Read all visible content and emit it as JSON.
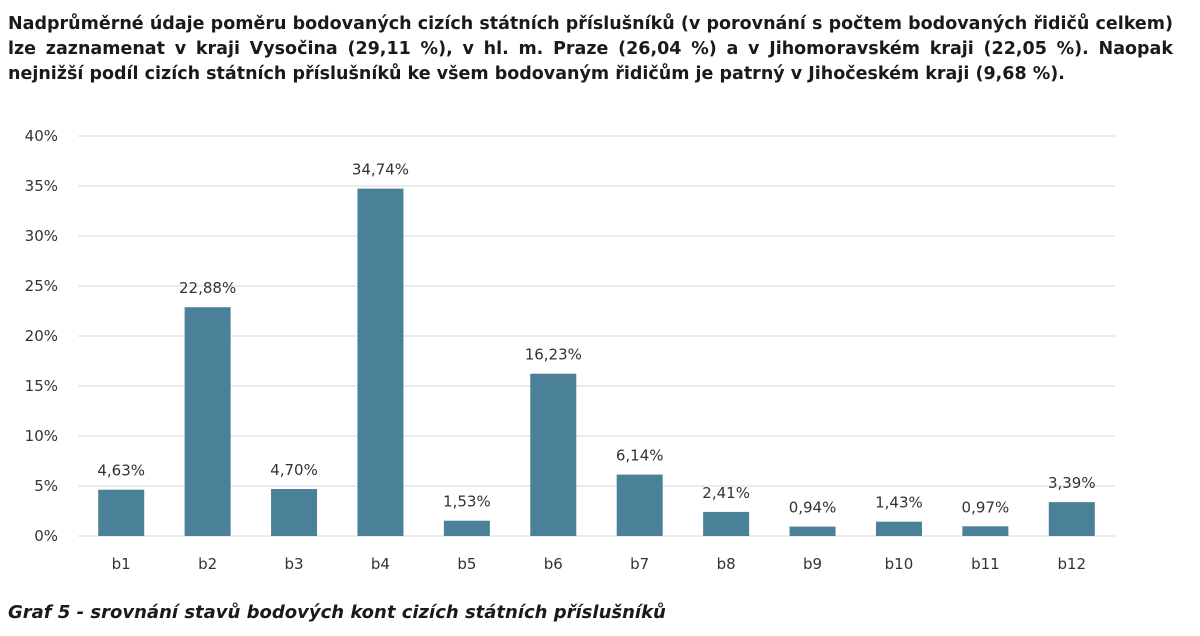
{
  "intro_text": "Nadprůměrné údaje poměru bodovaných cizích státních příslušníků (v porovnání s počtem bodovaných řidičů celkem) lze zaznamenat v kraji Vysočina (29,11 %), v hl. m. Praze (26,04 %) a v Jihomoravském kraji (22,05 %). Naopak nejnižší podíl cizích státních příslušníků ke všem bodovaným řidičům je patrný v Jihočeském kraji (9,68 %).",
  "caption": "Graf 5 - srovnání stavů bodových kont cizích státních příslušníků",
  "colors": {
    "bar": "#4a8199",
    "grid": "#d9d9d9"
  },
  "chart_data": {
    "type": "bar",
    "categories": [
      "b1",
      "b2",
      "b3",
      "b4",
      "b5",
      "b6",
      "b7",
      "b8",
      "b9",
      "b10",
      "b11",
      "b12"
    ],
    "values": [
      4.63,
      22.88,
      4.7,
      34.74,
      1.53,
      16.23,
      6.14,
      2.41,
      0.94,
      1.43,
      0.97,
      3.39
    ],
    "data_labels": [
      "4,63%",
      "22,88%",
      "4,70%",
      "34,74%",
      "1,53%",
      "16,23%",
      "6,14%",
      "2,41%",
      "0,94%",
      "1,43%",
      "0,97%",
      "3,39%"
    ],
    "ylim": [
      0,
      40
    ],
    "yticks": [
      0,
      5,
      10,
      15,
      20,
      25,
      30,
      35,
      40
    ],
    "ytick_labels": [
      "0%",
      "5%",
      "10%",
      "15%",
      "20%",
      "25%",
      "30%",
      "35%",
      "40%"
    ],
    "grid": true,
    "legend": "none"
  }
}
